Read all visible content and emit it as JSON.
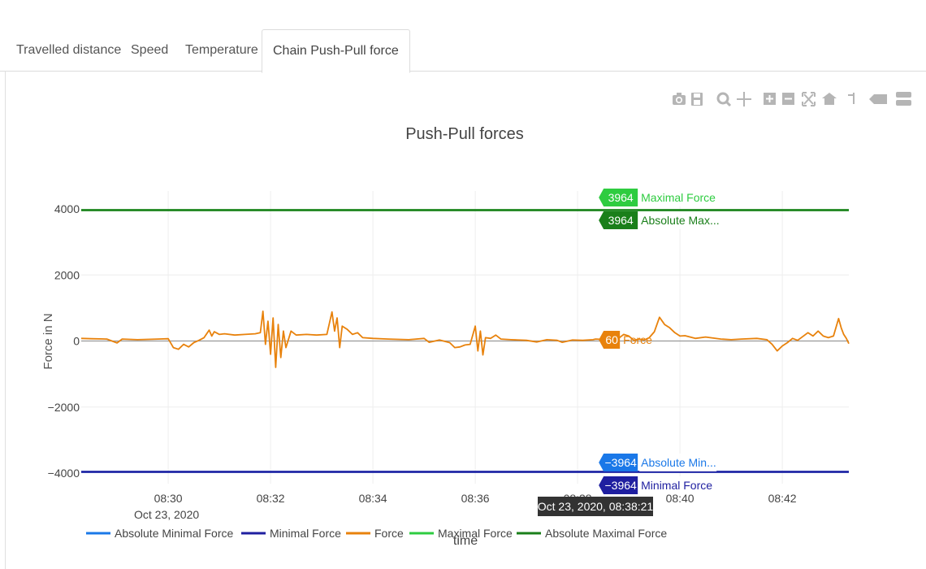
{
  "tabs": [
    {
      "label": "Travelled distance"
    },
    {
      "label": "Speed"
    },
    {
      "label": "Temperature"
    },
    {
      "label": "Chain Push-Pull force"
    }
  ],
  "active_tab": "Chain Push-Pull force",
  "modebar": {
    "icons": [
      "camera-icon",
      "save-icon",
      "zoom-icon",
      "pan-icon",
      "zoom-in-icon",
      "zoom-out-icon",
      "autoscale-icon",
      "reset-axes-icon",
      "spike-lines-icon",
      "hover-closest-icon",
      "hover-compare-icon"
    ]
  },
  "hover": {
    "timestamp": "Oct 23, 2020, 08:38:21",
    "labels": [
      {
        "value": "3964",
        "name": "Maximal Force",
        "color": "#2ecc40"
      },
      {
        "value": "3964",
        "name": "Absolute Max...",
        "color": "#1a7f1a"
      },
      {
        "value": "60",
        "name": "Force",
        "color": "#e8820c"
      },
      {
        "value": "−3964",
        "name": "Absolute Min...",
        "color": "#1a78e8"
      },
      {
        "value": "−3964",
        "name": "Minimal Force",
        "color": "#1f1fa0"
      }
    ]
  },
  "chart_data": {
    "type": "line",
    "title": "Push-Pull forces",
    "xlabel": "time",
    "ylabel": "Force in N",
    "x_tick_labels": [
      "08:30",
      "08:32",
      "08:34",
      "08:36",
      "08:38",
      "08:40",
      "08:42"
    ],
    "x_tick_sublabel": "Oct 23, 2020",
    "x_range_minutes": [
      28.3,
      43.3
    ],
    "x_ticks_minutes": [
      30,
      32,
      34,
      36,
      38,
      40,
      42
    ],
    "y_tick_labels": [
      "4000",
      "2000",
      "0",
      "−2000",
      "−4000"
    ],
    "y_ticks": [
      4000,
      2000,
      0,
      -2000,
      -4000
    ],
    "ylim": [
      -4000,
      4000
    ],
    "grid": true,
    "legend_position": "bottom",
    "series": [
      {
        "name": "Absolute Minimal Force",
        "color": "#1a78e8",
        "constant": -3964
      },
      {
        "name": "Minimal Force",
        "color": "#1f1fa0",
        "constant": -3964
      },
      {
        "name": "Force",
        "color": "#e8820c",
        "points": [
          [
            28.3,
            80
          ],
          [
            28.5,
            70
          ],
          [
            28.8,
            60
          ],
          [
            29.0,
            -60
          ],
          [
            29.1,
            60
          ],
          [
            29.4,
            40
          ],
          [
            29.6,
            50
          ],
          [
            29.8,
            60
          ],
          [
            30.0,
            70
          ],
          [
            30.1,
            -200
          ],
          [
            30.2,
            -250
          ],
          [
            30.3,
            -100
          ],
          [
            30.4,
            -180
          ],
          [
            30.5,
            -50
          ],
          [
            30.6,
            20
          ],
          [
            30.7,
            100
          ],
          [
            30.8,
            330
          ],
          [
            30.85,
            150
          ],
          [
            30.9,
            280
          ],
          [
            31.0,
            200
          ],
          [
            31.1,
            220
          ],
          [
            31.3,
            180
          ],
          [
            31.5,
            200
          ],
          [
            31.7,
            220
          ],
          [
            31.8,
            250
          ],
          [
            31.85,
            900
          ],
          [
            31.9,
            -100
          ],
          [
            31.95,
            600
          ],
          [
            32.0,
            -400
          ],
          [
            32.05,
            700
          ],
          [
            32.1,
            -800
          ],
          [
            32.15,
            500
          ],
          [
            32.2,
            -500
          ],
          [
            32.25,
            300
          ],
          [
            32.3,
            -200
          ],
          [
            32.4,
            300
          ],
          [
            32.5,
            180
          ],
          [
            32.7,
            200
          ],
          [
            32.9,
            180
          ],
          [
            33.1,
            200
          ],
          [
            33.2,
            880
          ],
          [
            33.25,
            300
          ],
          [
            33.3,
            700
          ],
          [
            33.35,
            -200
          ],
          [
            33.4,
            450
          ],
          [
            33.5,
            350
          ],
          [
            33.6,
            200
          ],
          [
            33.7,
            250
          ],
          [
            33.8,
            100
          ],
          [
            34.0,
            80
          ],
          [
            34.3,
            60
          ],
          [
            34.5,
            50
          ],
          [
            34.7,
            40
          ],
          [
            35.0,
            80
          ],
          [
            35.1,
            -40
          ],
          [
            35.3,
            30
          ],
          [
            35.5,
            -50
          ],
          [
            35.6,
            -200
          ],
          [
            35.7,
            -180
          ],
          [
            35.8,
            -120
          ],
          [
            35.9,
            -100
          ],
          [
            36.0,
            450
          ],
          [
            36.05,
            -300
          ],
          [
            36.1,
            300
          ],
          [
            36.15,
            -420
          ],
          [
            36.2,
            100
          ],
          [
            36.3,
            80
          ],
          [
            36.4,
            180
          ],
          [
            36.5,
            60
          ],
          [
            36.7,
            40
          ],
          [
            37.0,
            20
          ],
          [
            37.2,
            -30
          ],
          [
            37.4,
            40
          ],
          [
            37.6,
            20
          ],
          [
            37.7,
            -40
          ],
          [
            37.9,
            30
          ],
          [
            38.1,
            20
          ],
          [
            38.3,
            40
          ],
          [
            38.35,
            60
          ],
          [
            38.5,
            50
          ],
          [
            38.8,
            80
          ],
          [
            38.9,
            200
          ],
          [
            39.0,
            150
          ],
          [
            39.1,
            20
          ],
          [
            39.2,
            60
          ],
          [
            39.3,
            30
          ],
          [
            39.4,
            100
          ],
          [
            39.5,
            280
          ],
          [
            39.6,
            720
          ],
          [
            39.7,
            500
          ],
          [
            39.8,
            400
          ],
          [
            39.9,
            250
          ],
          [
            40.0,
            150
          ],
          [
            40.1,
            160
          ],
          [
            40.3,
            80
          ],
          [
            40.5,
            120
          ],
          [
            40.8,
            60
          ],
          [
            41.0,
            40
          ],
          [
            41.2,
            60
          ],
          [
            41.5,
            80
          ],
          [
            41.7,
            40
          ],
          [
            41.8,
            -100
          ],
          [
            41.9,
            -300
          ],
          [
            42.0,
            -150
          ],
          [
            42.1,
            -50
          ],
          [
            42.2,
            80
          ],
          [
            42.3,
            20
          ],
          [
            42.5,
            250
          ],
          [
            42.6,
            150
          ],
          [
            42.7,
            300
          ],
          [
            42.8,
            150
          ],
          [
            42.9,
            100
          ],
          [
            43.0,
            150
          ],
          [
            43.1,
            680
          ],
          [
            43.15,
            400
          ],
          [
            43.2,
            200
          ],
          [
            43.25,
            80
          ],
          [
            43.3,
            -80
          ]
        ]
      },
      {
        "name": "Maximal Force",
        "color": "#2ecc40",
        "constant": 3964
      },
      {
        "name": "Absolute Maximal Force",
        "color": "#1a7f1a",
        "constant": 3964
      }
    ]
  }
}
